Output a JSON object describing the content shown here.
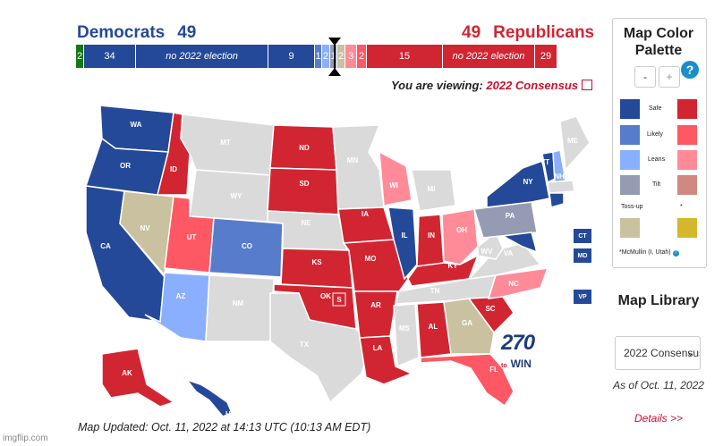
{
  "header": {
    "dem_label": "Democrats",
    "dem_total": "49",
    "rep_total": "49",
    "rep_label": "Republicans"
  },
  "seat_bar": [
    {
      "label": "2",
      "color": "#127a13"
    },
    {
      "label": "34",
      "color": "#244999"
    },
    {
      "label": "no 2022 election",
      "color": "#244999"
    },
    {
      "label": "9",
      "color": "#244999"
    },
    {
      "label": "1",
      "color": "#577ccc"
    },
    {
      "label": "2",
      "color": "#8aafff"
    },
    {
      "label": "1",
      "color": "#949bb3"
    },
    {
      "label": "2",
      "color": "#c9c19f"
    },
    {
      "label": "3",
      "color": "#ff8b98"
    },
    {
      "label": "2",
      "color": "#ff5865"
    },
    {
      "label": "15",
      "color": "#d22532"
    },
    {
      "label": "no 2022 election",
      "color": "#d22532"
    },
    {
      "label": "29",
      "color": "#d22532"
    }
  ],
  "viewing": {
    "prefix": "You are viewing:",
    "link": "2022 Consensus"
  },
  "map": {
    "states": {
      "WA": "WA",
      "OR": "OR",
      "CA": "CA",
      "ID": "ID",
      "NV": "NV",
      "MT": "MT",
      "WY": "WY",
      "UT": "UT",
      "AZ": "AZ",
      "CO": "CO",
      "NM": "NM",
      "ND": "ND",
      "SD": "SD",
      "NE": "NE",
      "KS": "KS",
      "OK": "OK",
      "TX": "TX",
      "MN": "MN",
      "IA": "IA",
      "MO": "MO",
      "AR": "AR",
      "LA": "LA",
      "WI": "WI",
      "IL": "IL",
      "MI": "MI",
      "IN": "IN",
      "OH": "OH",
      "KY": "KY",
      "TN": "TN",
      "MS": "MS",
      "AL": "AL",
      "GA": "GA",
      "FL": "FL",
      "SC": "SC",
      "NC": "NC",
      "VA": "VA",
      "WV": "WV",
      "PA": "PA",
      "NY": "NY",
      "VT": "VT",
      "NH": "NH",
      "ME": "ME",
      "MA": "MA",
      "MD": "MD",
      "AK": "AK",
      "HI": "HI",
      "S": "S"
    },
    "small_boxes": {
      "ct": "CT",
      "md": "MD",
      "vp": "VP"
    },
    "updated": "Map Updated: Oct. 11, 2022 at 14:13 UTC (10:13 AM EDT)",
    "logo_number": "270",
    "logo_to": "to",
    "logo_win": "WIN"
  },
  "palette": {
    "title": "Map Color Palette",
    "minus": "-",
    "plus": "+",
    "help": "?",
    "safe": "Safe",
    "likely": "Likely",
    "leans": "Leans",
    "tilt": "Tilt",
    "tossup": "Toss-up",
    "tossup_star": "*",
    "mcmullin": "*McMullin (I, Utah)",
    "mcmullin_help": "?",
    "colors": {
      "safe_d": "#244999",
      "safe_r": "#d22532",
      "likely_d": "#577ccc",
      "likely_r": "#ff5865",
      "leans_d": "#8aafff",
      "leans_r": "#ff8b98",
      "tilt_d": "#949bb3",
      "tilt_r": "#cf8980",
      "tossup": "#c9c19f",
      "tossup_ind": "#d4b82b"
    }
  },
  "library": {
    "title": "Map Library",
    "selected": "2022 Consensus",
    "as_of": "As of Oct. 11, 2022",
    "details": "Details >>"
  },
  "watermark": "imgflip.com"
}
